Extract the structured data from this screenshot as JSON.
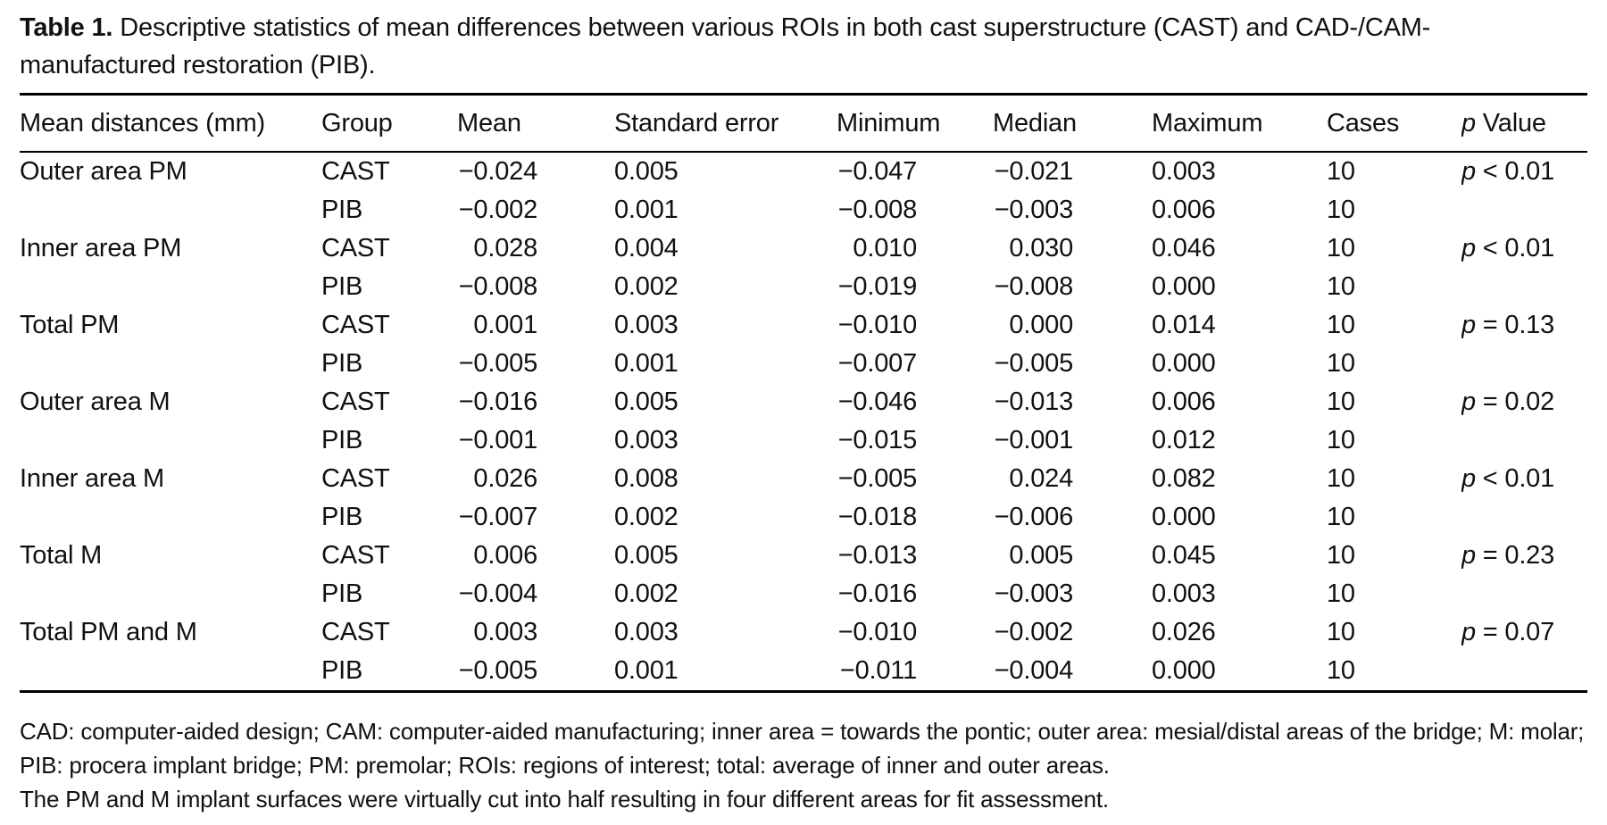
{
  "page": {
    "background_color": "#ffffff",
    "text_color": "#111111",
    "rule_color": "#000000"
  },
  "table": {
    "title_label": "Table 1.",
    "title_text": "Descriptive statistics of mean differences between various ROIs in both cast superstructure (CAST) and CAD-/CAM-manufactured restoration (PIB).",
    "columns": [
      "Mean distances (mm)",
      "Group",
      "Mean",
      "Standard error",
      "Minimum",
      "Median",
      "Maximum",
      "Cases",
      "p Value"
    ],
    "rows": [
      {
        "label": "Outer area PM",
        "group": "CAST",
        "mean": "−0.024",
        "se": "0.005",
        "min": "−0.047",
        "median": "−0.021",
        "max": "0.003",
        "cases": "10",
        "p": "p < 0.01"
      },
      {
        "label": "",
        "group": "PIB",
        "mean": "−0.002",
        "se": "0.001",
        "min": "−0.008",
        "median": "−0.003",
        "max": "0.006",
        "cases": "10",
        "p": ""
      },
      {
        "label": "Inner area PM",
        "group": "CAST",
        "mean": "0.028",
        "se": "0.004",
        "min": "0.010",
        "median": "0.030",
        "max": "0.046",
        "cases": "10",
        "p": "p < 0.01"
      },
      {
        "label": "",
        "group": "PIB",
        "mean": "−0.008",
        "se": "0.002",
        "min": "−0.019",
        "median": "−0.008",
        "max": "0.000",
        "cases": "10",
        "p": ""
      },
      {
        "label": "Total PM",
        "group": "CAST",
        "mean": "0.001",
        "se": "0.003",
        "min": "−0.010",
        "median": "0.000",
        "max": "0.014",
        "cases": "10",
        "p": "p = 0.13"
      },
      {
        "label": "",
        "group": "PIB",
        "mean": "−0.005",
        "se": "0.001",
        "min": "−0.007",
        "median": "−0.005",
        "max": "0.000",
        "cases": "10",
        "p": ""
      },
      {
        "label": "Outer area M",
        "group": "CAST",
        "mean": "−0.016",
        "se": "0.005",
        "min": "−0.046",
        "median": "−0.013",
        "max": "0.006",
        "cases": "10",
        "p": "p = 0.02"
      },
      {
        "label": "",
        "group": "PIB",
        "mean": "−0.001",
        "se": "0.003",
        "min": "−0.015",
        "median": "−0.001",
        "max": "0.012",
        "cases": "10",
        "p": ""
      },
      {
        "label": "Inner area M",
        "group": "CAST",
        "mean": "0.026",
        "se": "0.008",
        "min": "−0.005",
        "median": "0.024",
        "max": "0.082",
        "cases": "10",
        "p": "p < 0.01"
      },
      {
        "label": "",
        "group": "PIB",
        "mean": "−0.007",
        "se": "0.002",
        "min": "−0.018",
        "median": "−0.006",
        "max": "0.000",
        "cases": "10",
        "p": ""
      },
      {
        "label": "Total M",
        "group": "CAST",
        "mean": "0.006",
        "se": "0.005",
        "min": "−0.013",
        "median": "0.005",
        "max": "0.045",
        "cases": "10",
        "p": "p = 0.23"
      },
      {
        "label": "",
        "group": "PIB",
        "mean": "−0.004",
        "se": "0.002",
        "min": "−0.016",
        "median": "−0.003",
        "max": "0.003",
        "cases": "10",
        "p": ""
      },
      {
        "label": "Total PM and M",
        "group": "CAST",
        "mean": "0.003",
        "se": "0.003",
        "min": "−0.010",
        "median": "−0.002",
        "max": "0.026",
        "cases": "10",
        "p": "p = 0.07"
      },
      {
        "label": "",
        "group": "PIB",
        "mean": "−0.005",
        "se": "0.001",
        "min": "−0.011",
        "median": "−0.004",
        "max": "0.000",
        "cases": "10",
        "p": ""
      }
    ],
    "footnotes": [
      "CAD: computer-aided design; CAM: computer-aided manufacturing; inner area = towards the pontic; outer area: mesial/distal areas of the bridge; M: molar; PIB: procera implant bridge; PM: premolar; ROIs: regions of interest; total: average of inner and outer areas.",
      "The PM and M implant surfaces were virtually cut into half resulting in four different areas for fit assessment."
    ]
  }
}
